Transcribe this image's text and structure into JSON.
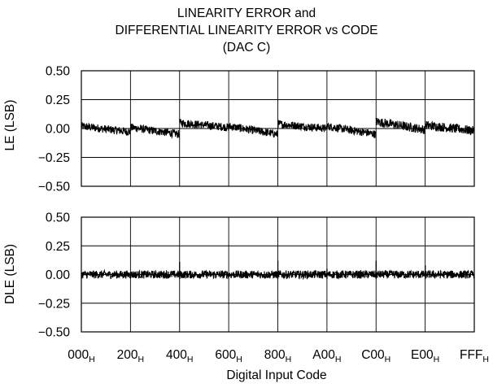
{
  "title": {
    "line1": "LINEARITY ERROR and",
    "line2": "DIFFERENTIAL LINEARITY ERROR vs CODE",
    "line3": "(DAC C)"
  },
  "chart_data": [
    {
      "type": "line",
      "ylabel": "LE (LSB)",
      "xlabel": "Digital Input Code",
      "ylim": [
        -0.5,
        0.5
      ],
      "yticks": [
        "0.50",
        "0.25",
        "0.00",
        "−0.25",
        "−0.50"
      ],
      "xlim_codes": [
        0,
        4095
      ],
      "grid": true,
      "series": [
        {
          "segments": [
            {
              "x_start": 0,
              "x_end": 511,
              "y_start": 0.02,
              "y_end": -0.03,
              "noise": 0.035
            },
            {
              "x_start": 512,
              "x_end": 1023,
              "y_start": 0.01,
              "y_end": -0.05,
              "noise": 0.035
            },
            {
              "x_start": 1024,
              "x_end": 1535,
              "y_start": 0.05,
              "y_end": 0.01,
              "noise": 0.035
            },
            {
              "x_start": 1536,
              "x_end": 2047,
              "y_start": 0.02,
              "y_end": -0.05,
              "noise": 0.035
            },
            {
              "x_start": 2048,
              "x_end": 2559,
              "y_start": 0.04,
              "y_end": 0.0,
              "noise": 0.035
            },
            {
              "x_start": 2560,
              "x_end": 3071,
              "y_start": 0.02,
              "y_end": -0.05,
              "noise": 0.035
            },
            {
              "x_start": 3072,
              "x_end": 3583,
              "y_start": 0.06,
              "y_end": -0.01,
              "noise": 0.04
            },
            {
              "x_start": 3584,
              "x_end": 4095,
              "y_start": 0.03,
              "y_end": -0.02,
              "noise": 0.04
            }
          ]
        }
      ]
    },
    {
      "type": "line",
      "ylabel": "DLE (LSB)",
      "xlabel": "Digital Input Code",
      "ylim": [
        -0.5,
        0.5
      ],
      "yticks": [
        "0.50",
        "0.25",
        "0.00",
        "−0.25",
        "−0.50"
      ],
      "xlim_codes": [
        0,
        4095
      ],
      "grid": true,
      "series": [
        {
          "baseline": 0.0,
          "noise": 0.035,
          "spikes": [
            {
              "x": 1024,
              "y": 0.11
            },
            {
              "x": 2048,
              "y": 0.12
            },
            {
              "x": 2560,
              "y": 0.05
            },
            {
              "x": 3072,
              "y": 0.12
            },
            {
              "x": 3584,
              "y": 0.08
            }
          ]
        }
      ]
    }
  ],
  "xaxis": {
    "ticks": [
      {
        "main": "000",
        "sub": "H"
      },
      {
        "main": "200",
        "sub": "H"
      },
      {
        "main": "400",
        "sub": "H"
      },
      {
        "main": "600",
        "sub": "H"
      },
      {
        "main": "800",
        "sub": "H"
      },
      {
        "main": "A00",
        "sub": "H"
      },
      {
        "main": "C00",
        "sub": "H"
      },
      {
        "main": "E00",
        "sub": "H"
      },
      {
        "main": "FFF",
        "sub": "H"
      }
    ],
    "label": "Digital Input Code"
  }
}
